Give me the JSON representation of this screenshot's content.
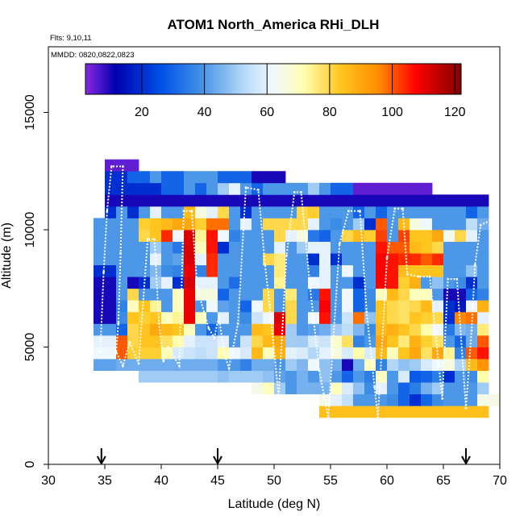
{
  "chart_data": {
    "type": "heatmap",
    "title": "ATOM1 North_America RHi_DLH",
    "subtitle_flights": "Flts: 9,10,11",
    "subtitle_dates": "MMDD: 0820,0822,0823",
    "xlabel": "Latitude (deg N)",
    "ylabel": "Altitude (m)",
    "xlim": [
      30,
      70
    ],
    "ylim": [
      0,
      17800
    ],
    "x_ticks": [
      "30",
      "35",
      "40",
      "45",
      "50",
      "55",
      "60",
      "65",
      "70"
    ],
    "x_tick_values": [
      30,
      35,
      40,
      45,
      50,
      55,
      60,
      65,
      70
    ],
    "y_ticks": [
      "0",
      "5000",
      "10000",
      "15000"
    ],
    "y_tick_values": [
      0,
      5000,
      10000,
      15000
    ],
    "colorbar": {
      "range": [
        2,
        122
      ],
      "tick_labels": [
        "20",
        "40",
        "60",
        "80",
        "100",
        "120"
      ],
      "tick_values": [
        20,
        40,
        60,
        80,
        100,
        120
      ]
    },
    "grid": {
      "lat_start": 34,
      "lat_step": 1,
      "alt_start": 2000,
      "alt_step": 500,
      "rows": [
        {
          "alt": 2000,
          "start": 54,
          "values": [
            85,
            85,
            85,
            85,
            85,
            85,
            85,
            85,
            85,
            85,
            85,
            85,
            85,
            85,
            85
          ]
        },
        {
          "alt": 2500,
          "start": 54,
          "values": [
            65,
            60,
            55,
            40,
            40,
            40,
            38,
            30,
            20,
            30,
            38,
            40,
            40,
            40,
            65,
            65
          ]
        },
        {
          "alt": 3000,
          "start": 48,
          "values": [
            65,
            70,
            50,
            40,
            45,
            45,
            45,
            70,
            58,
            48,
            38,
            60,
            40,
            30,
            35,
            45,
            50,
            40,
            40,
            40,
            50
          ]
        },
        {
          "alt": 3500,
          "start": 38,
          "values": [
            50,
            50,
            50,
            50,
            50,
            50,
            50,
            48,
            50,
            50,
            50,
            48,
            42,
            40,
            45,
            40,
            48,
            40,
            30,
            40,
            35,
            70,
            40,
            58,
            28,
            30,
            35,
            20,
            40,
            38,
            72
          ]
        },
        {
          "alt": 4000,
          "start": 34,
          "values": [
            42,
            42,
            44,
            44,
            44,
            44,
            44,
            44,
            44,
            44,
            44,
            40,
            40,
            36,
            44,
            44,
            40,
            50,
            46,
            62,
            48,
            44,
            10,
            44,
            70,
            36,
            52,
            48,
            50,
            58,
            62,
            66,
            52,
            86,
            94
          ]
        },
        {
          "alt": 4500,
          "start": 34,
          "values": [
            62,
            62,
            100,
            82,
            82,
            82,
            72,
            58,
            56,
            54,
            56,
            72,
            62,
            58,
            86,
            70,
            88,
            60,
            58,
            52,
            60,
            66,
            58,
            72,
            58,
            86,
            70,
            84,
            90,
            78,
            90,
            74,
            36,
            100,
            106
          ]
        },
        {
          "alt": 5000,
          "start": 34,
          "values": [
            60,
            60,
            100,
            80,
            84,
            84,
            78,
            72,
            60,
            56,
            56,
            60,
            40,
            56,
            80,
            86,
            90,
            50,
            50,
            58,
            56,
            68,
            78,
            36,
            40,
            90,
            84,
            76,
            88,
            82,
            78,
            40,
            30,
            44,
            100
          ]
        },
        {
          "alt": 5500,
          "start": 34,
          "values": [
            40,
            40,
            30,
            80,
            84,
            90,
            86,
            84,
            70,
            40,
            30,
            40,
            40,
            40,
            86,
            84,
            110,
            50,
            40,
            42,
            44,
            50,
            54,
            46,
            38,
            86,
            88,
            84,
            80,
            72,
            62,
            34,
            46,
            44,
            76
          ]
        },
        {
          "alt": 6000,
          "start": 34,
          "values": [
            10,
            10,
            38,
            84,
            82,
            84,
            70,
            74,
            110,
            70,
            40,
            60,
            40,
            38,
            56,
            62,
            112,
            80,
            40,
            62,
            106,
            40,
            56,
            98,
            48,
            84,
            80,
            78,
            84,
            82,
            80,
            20,
            96,
            98,
            60
          ]
        },
        {
          "alt": 6500,
          "start": 34,
          "values": [
            10,
            10,
            36,
            70,
            84,
            74,
            40,
            70,
            110,
            40,
            62,
            42,
            40,
            30,
            62,
            80,
            40,
            80,
            40,
            40,
            108,
            40,
            62,
            30,
            38,
            84,
            80,
            78,
            80,
            86,
            60,
            20,
            16,
            62,
            88
          ]
        },
        {
          "alt": 7000,
          "start": 34,
          "values": [
            10,
            10,
            40,
            80,
            40,
            40,
            40,
            70,
            110,
            66,
            66,
            30,
            40,
            40,
            40,
            80,
            40,
            76,
            40,
            34,
            106,
            40,
            62,
            30,
            38,
            70,
            86,
            80,
            70,
            70,
            40,
            10,
            10,
            30,
            36
          ]
        },
        {
          "alt": 7500,
          "start": 34,
          "values": [
            10,
            10,
            40,
            10,
            20,
            50,
            60,
            20,
            112,
            60,
            60,
            40,
            32,
            40,
            40,
            40,
            74,
            40,
            40,
            62,
            60,
            40,
            40,
            20,
            40,
            108,
            106,
            82,
            88,
            40,
            48,
            40,
            38,
            20,
            40
          ]
        },
        {
          "alt": 8000,
          "start": 34,
          "values": [
            20,
            20,
            40,
            40,
            40,
            46,
            38,
            36,
            110,
            36,
            104,
            40,
            40,
            40,
            40,
            40,
            76,
            40,
            40,
            36,
            60,
            40,
            62,
            40,
            40,
            108,
            106,
            86,
            84,
            84,
            84,
            40,
            40,
            48,
            40
          ]
        },
        {
          "alt": 8500,
          "start": 34,
          "values": [
            40,
            40,
            40,
            40,
            40,
            60,
            40,
            42,
            112,
            60,
            104,
            40,
            40,
            40,
            40,
            80,
            76,
            40,
            40,
            20,
            60,
            20,
            40,
            40,
            40,
            108,
            106,
            104,
            104,
            100,
            104,
            40,
            40,
            40,
            40
          ]
        },
        {
          "alt": 9000,
          "start": 34,
          "values": [
            40,
            40,
            40,
            40,
            40,
            50,
            40,
            34,
            112,
            70,
            106,
            20,
            40,
            40,
            40,
            40,
            60,
            40,
            50,
            60,
            60,
            40,
            40,
            40,
            40,
            106,
            100,
            100,
            86,
            84,
            80,
            40,
            40,
            40,
            40
          ]
        },
        {
          "alt": 9500,
          "start": 34,
          "values": [
            40,
            40,
            40,
            40,
            80,
            84,
            104,
            62,
            112,
            74,
            106,
            62,
            36,
            40,
            40,
            40,
            80,
            60,
            66,
            34,
            30,
            40,
            80,
            86,
            82,
            102,
            40,
            102,
            84,
            84,
            90,
            64,
            80,
            60,
            40
          ]
        },
        {
          "alt": 10000,
          "start": 34,
          "values": [
            40,
            40,
            40,
            40,
            82,
            84,
            86,
            90,
            90,
            82,
            98,
            98,
            40,
            60,
            40,
            80,
            80,
            80,
            80,
            60,
            40,
            38,
            40,
            50,
            20,
            100,
            40,
            86,
            66,
            62,
            40,
            40,
            40,
            54,
            44
          ]
        },
        {
          "alt": 10500,
          "start": 35,
          "values": [
            20,
            40,
            20,
            40,
            60,
            40,
            40,
            86,
            66,
            60,
            80,
            40,
            20,
            40,
            40,
            40,
            40,
            80,
            82,
            40,
            40,
            40,
            30,
            40,
            30,
            40,
            40,
            40,
            40,
            40,
            40,
            40,
            30,
            40
          ]
        },
        {
          "alt": 11000,
          "start": 35,
          "values": [
            10,
            10,
            10,
            10,
            10,
            10,
            10,
            10,
            10,
            10,
            10,
            10,
            10,
            10,
            10,
            10,
            10,
            10,
            10,
            10,
            10,
            10,
            10,
            10,
            10,
            10,
            10,
            10,
            10,
            10,
            10,
            10,
            10,
            10
          ]
        },
        {
          "alt": 11500,
          "start": 35,
          "values": [
            20,
            20,
            20,
            20,
            20,
            30,
            30,
            40,
            30,
            40,
            50,
            60,
            40,
            30,
            40,
            40,
            40,
            40,
            50,
            40,
            30,
            30,
            5,
            5,
            5,
            5,
            5,
            5,
            5
          ]
        },
        {
          "alt": 12000,
          "start": 35,
          "values": [
            20,
            20,
            30,
            30,
            40,
            30,
            30,
            40,
            40,
            40,
            30,
            30,
            30,
            10,
            10,
            10
          ]
        },
        {
          "alt": 12500,
          "start": 35,
          "values": [
            5,
            5,
            5
          ]
        }
      ]
    },
    "flight_track": [
      [
        34.6,
        4800
      ],
      [
        34.9,
        8200
      ],
      [
        35.2,
        10800
      ],
      [
        35.6,
        12700
      ],
      [
        36.6,
        12700
      ],
      [
        36.4,
        9000
      ],
      [
        36.2,
        6000
      ],
      [
        36.0,
        4800
      ],
      [
        36.6,
        4200
      ],
      [
        37.2,
        5200
      ],
      [
        38.0,
        4300
      ],
      [
        38.8,
        9600
      ],
      [
        39.4,
        9600
      ],
      [
        39.8,
        6000
      ],
      [
        40.2,
        4400
      ],
      [
        40.6,
        5000
      ],
      [
        41.6,
        4200
      ],
      [
        42.0,
        10800
      ],
      [
        42.7,
        10800
      ],
      [
        43.2,
        7500
      ],
      [
        44.2,
        5800
      ],
      [
        44.7,
        5400
      ],
      [
        45.1,
        6300
      ],
      [
        45.6,
        4700
      ],
      [
        46.0,
        4100
      ],
      [
        46.8,
        6000
      ],
      [
        47.5,
        11800
      ],
      [
        48.6,
        11700
      ],
      [
        49.2,
        8500
      ],
      [
        49.6,
        6800
      ],
      [
        50.4,
        2900
      ],
      [
        51.1,
        8900
      ],
      [
        51.8,
        11600
      ],
      [
        52.4,
        11600
      ],
      [
        53.2,
        7500
      ],
      [
        54.0,
        4000
      ],
      [
        54.8,
        2000
      ],
      [
        55.8,
        9400
      ],
      [
        56.6,
        10800
      ],
      [
        57.6,
        10800
      ],
      [
        58.2,
        6500
      ],
      [
        58.9,
        3300
      ],
      [
        59.2,
        2000
      ],
      [
        60.0,
        8800
      ],
      [
        60.7,
        10900
      ],
      [
        61.4,
        10900
      ],
      [
        61.8,
        8100
      ],
      [
        62.8,
        8000
      ],
      [
        63.8,
        8000
      ],
      [
        64.6,
        4200
      ],
      [
        64.9,
        2800
      ],
      [
        65.4,
        7900
      ],
      [
        66.2,
        7900
      ],
      [
        67.0,
        2400
      ],
      [
        67.5,
        5700
      ],
      [
        67.8,
        8500
      ],
      [
        68.3,
        10200
      ],
      [
        69.2,
        10400
      ],
      [
        69.9,
        11400
      ]
    ],
    "arrows_lat": [
      34.7,
      45.0,
      67.0
    ]
  }
}
